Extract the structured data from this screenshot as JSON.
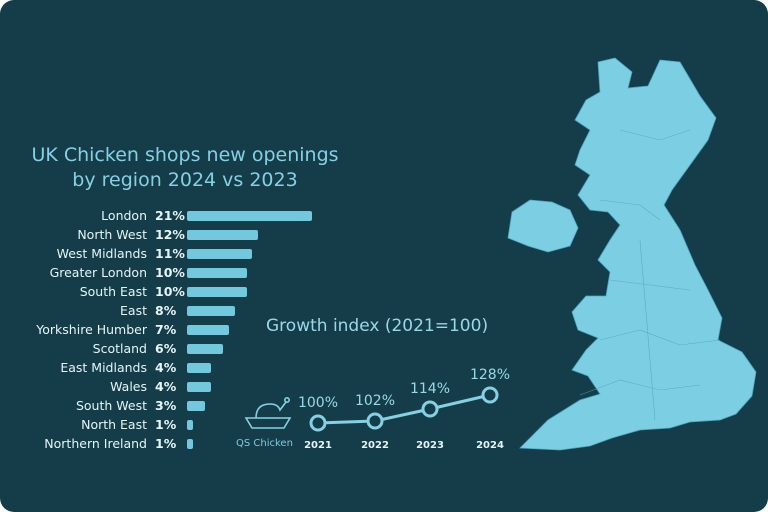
{
  "chart_data": [
    {
      "type": "bar",
      "title": "UK Chicken shops new openings by region 2024 vs 2023",
      "title_lines": [
        "UK Chicken shops new openings",
        "by region 2024 vs 2023"
      ],
      "categories": [
        "London",
        "North West",
        "West Midlands",
        "Greater London",
        "South East",
        "East",
        "Yorkshire Humber",
        "Scotland",
        "East Midlands",
        "Wales",
        "South West",
        "North East",
        "Northern Ireland"
      ],
      "values": [
        21,
        12,
        11,
        10,
        10,
        8,
        7,
        6,
        4,
        4,
        3,
        1,
        1
      ],
      "labels": [
        "21%",
        "12%",
        "11%",
        "10%",
        "10%",
        "8%",
        "7%",
        "6%",
        "4%",
        "4%",
        "3%",
        "1%",
        "1%"
      ],
      "orientation": "horizontal",
      "color": "#72c9de"
    },
    {
      "type": "line",
      "title": "Growth index (2021=100)",
      "series_label": "QS Chicken",
      "x": [
        "2021",
        "2022",
        "2023",
        "2024"
      ],
      "values": [
        100,
        102,
        114,
        128
      ],
      "labels": [
        "100%",
        "102%",
        "114%",
        "128%"
      ],
      "color": "#86d0e4"
    }
  ],
  "colors": {
    "background": "#143d49",
    "accent": "#86d0e4",
    "map": "#7ccfe2"
  },
  "icons": {
    "series_icon": "roast-chicken-icon"
  }
}
